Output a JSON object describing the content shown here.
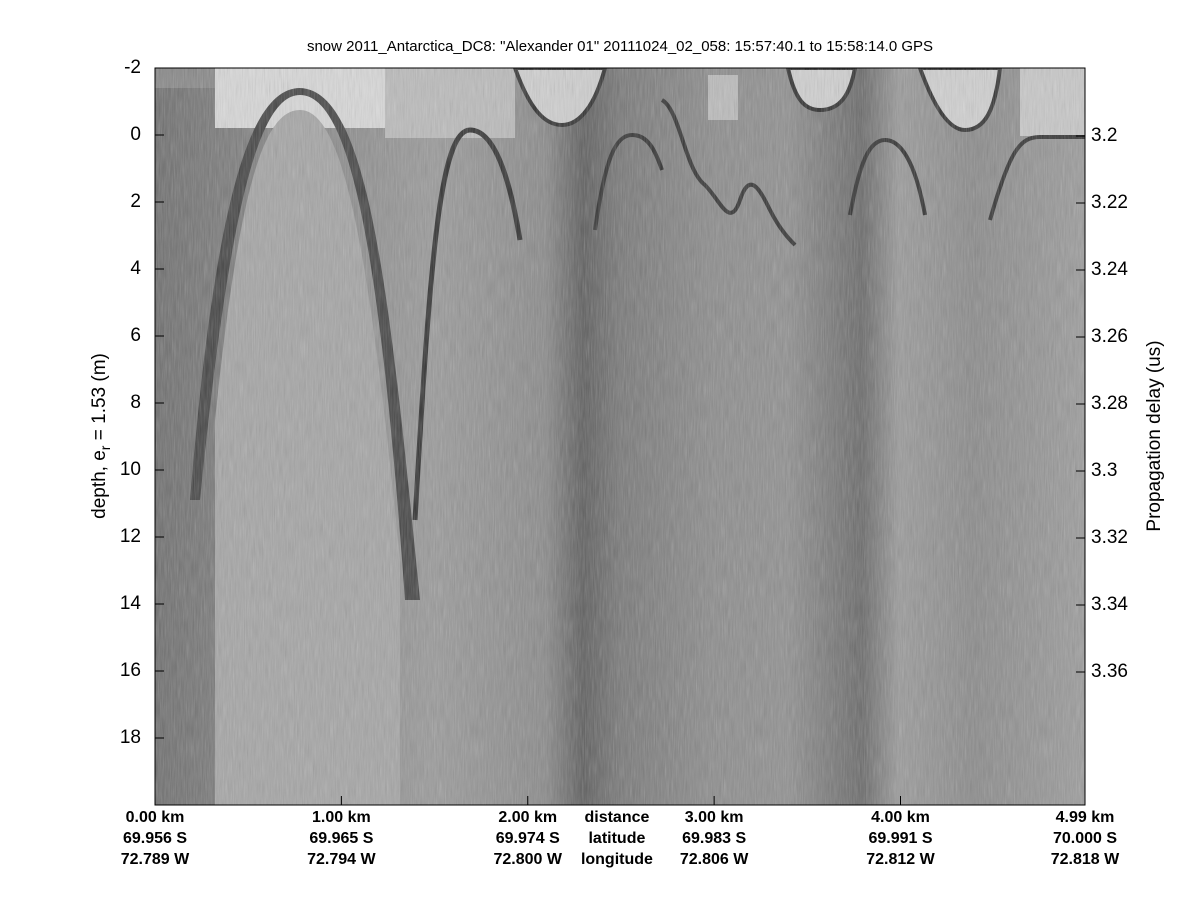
{
  "chart_data": {
    "type": "echogram",
    "title": "snow 2011_Antarctica_DC8: \"Alexander 01\"  20111024_02_058: 15:57:40.1 to 15:58:14.0 GPS",
    "ylabel": [
      "depth, e",
      "r",
      " = 1.53 (m)"
    ],
    "y2label": "Propagation delay (us)",
    "ylim": [
      -2,
      20
    ],
    "yticks": [
      -2,
      0,
      2,
      4,
      6,
      8,
      10,
      12,
      14,
      16,
      18
    ],
    "y2lim": [
      3.1797,
      3.3997
    ],
    "y2ticks": [
      3.2,
      3.22,
      3.24,
      3.26,
      3.28,
      3.3,
      3.32,
      3.34,
      3.36
    ],
    "xlim": [
      0,
      4.99
    ],
    "xticks": [
      {
        "value": 0,
        "label": "0.00 km"
      },
      {
        "value": 1,
        "label": "1.00 km"
      },
      {
        "value": 2,
        "label": "2.00 km"
      },
      {
        "value": 3,
        "label": "3.00 km"
      },
      {
        "value": 4,
        "label": "4.00 km"
      },
      {
        "value": 4.99,
        "label": "4.99 km"
      }
    ],
    "xtick_latitude": [
      "69.956 S",
      "69.965 S",
      "69.974 S",
      "69.983 S",
      "69.991 S",
      "70.000 S"
    ],
    "xtick_longitude": [
      "72.789 W",
      "72.794 W",
      "72.800 W",
      "72.806 W",
      "72.812 W",
      "72.818 W"
    ],
    "xaxis_rows": [
      "distance",
      "latitude",
      "longitude"
    ],
    "colormap": "gray"
  }
}
